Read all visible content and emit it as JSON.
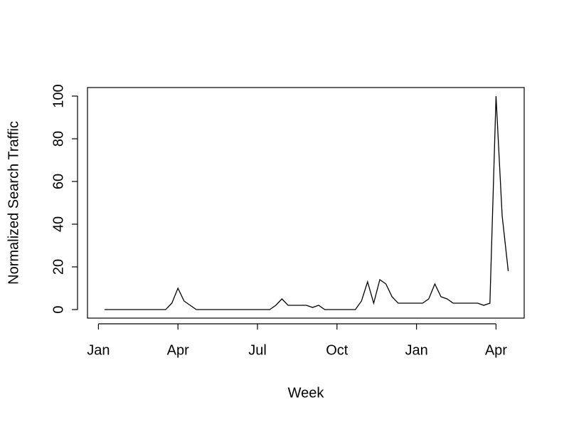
{
  "chart_data": {
    "type": "line",
    "x_label": "Week",
    "y_label": "Normalized Search Traffic",
    "categories": [
      "Jan",
      null,
      null,
      null,
      null,
      null,
      null,
      null,
      null,
      null,
      null,
      null,
      null,
      "Apr",
      null,
      null,
      null,
      null,
      null,
      null,
      null,
      null,
      null,
      null,
      null,
      null,
      "Jul",
      null,
      null,
      null,
      null,
      null,
      null,
      null,
      null,
      null,
      null,
      null,
      null,
      "Oct",
      null,
      null,
      null,
      null,
      null,
      null,
      null,
      null,
      null,
      null,
      null,
      null,
      "Jan",
      null,
      null,
      null,
      null,
      null,
      null,
      null,
      null,
      null,
      null,
      null,
      null,
      "Apr",
      null,
      null
    ],
    "values": [
      null,
      0,
      0,
      0,
      0,
      0,
      0,
      0,
      0,
      0,
      0,
      0,
      3,
      10,
      4,
      2,
      0,
      0,
      0,
      0,
      0,
      0,
      0,
      0,
      0,
      0,
      0,
      0,
      0,
      2,
      5,
      2,
      2,
      2,
      2,
      1,
      2,
      0,
      0,
      0,
      0,
      0,
      0,
      4,
      13,
      3,
      14,
      12,
      6,
      3,
      3,
      3,
      3,
      3,
      5,
      12,
      6,
      5,
      3,
      3,
      3,
      3,
      3,
      2,
      3,
      100,
      44,
      18
    ],
    "color": "#000000",
    "ylim": [
      -4,
      104
    ],
    "yticks": [
      0,
      20,
      40,
      60,
      80,
      100
    ],
    "grid": false
  }
}
